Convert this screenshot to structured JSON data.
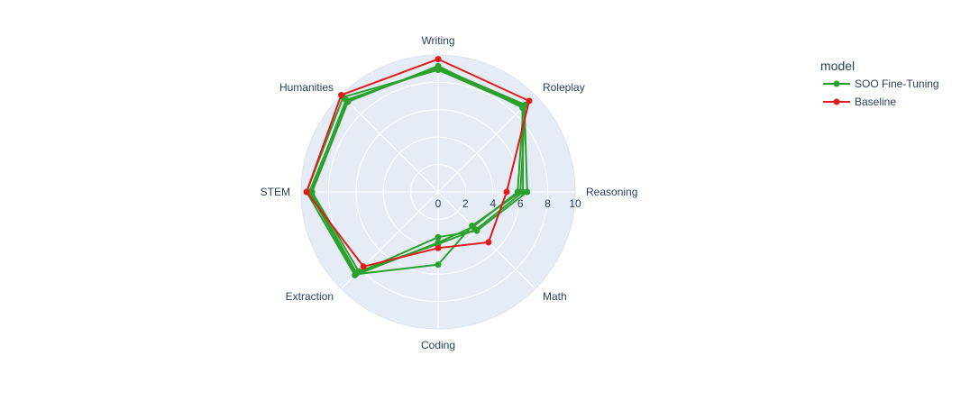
{
  "chart_data": {
    "type": "radar",
    "axes": [
      "Writing",
      "Roleplay",
      "Reasoning",
      "Math",
      "Coding",
      "Extraction",
      "STEM",
      "Humanities"
    ],
    "radial_range": [
      0,
      10
    ],
    "radial_ticks": [
      "0",
      "2",
      "4",
      "6",
      "8",
      "10"
    ],
    "legend": {
      "title": "model",
      "position": "top-right"
    },
    "colors": {
      "background": "#e5ecf6",
      "grid": "#ffffff",
      "text": "#2a3f5f"
    },
    "series": [
      {
        "name": "SOO Fine-Tuning",
        "color": "#2ca02c",
        "show_in_legend": true,
        "values": [
          9.0,
          8.9,
          6.5,
          4.0,
          3.3,
          8.4,
          9.3,
          9.5
        ]
      },
      {
        "name": "SOO Fine-Tuning",
        "color": "#2ca02c",
        "show_in_legend": false,
        "values": [
          9.2,
          8.7,
          6.2,
          3.9,
          3.8,
          8.2,
          9.2,
          9.3
        ]
      },
      {
        "name": "SOO Fine-Tuning",
        "color": "#2ca02c",
        "show_in_legend": false,
        "values": [
          8.9,
          8.8,
          5.8,
          3.6,
          3.7,
          8.6,
          9.6,
          9.8
        ]
      },
      {
        "name": "SOO Fine-Tuning",
        "color": "#2ca02c",
        "show_in_legend": false,
        "values": [
          9.1,
          9.0,
          6.0,
          3.5,
          5.3,
          8.5,
          9.4,
          9.4
        ]
      },
      {
        "name": "Baseline",
        "color": "#e31a1c",
        "show_in_legend": true,
        "values": [
          9.7,
          9.4,
          5.0,
          5.2,
          4.1,
          7.7,
          9.6,
          10.0
        ]
      }
    ]
  }
}
